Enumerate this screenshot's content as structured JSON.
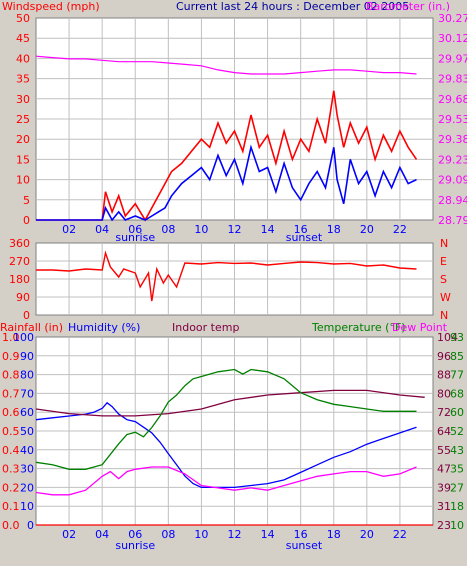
{
  "header": {
    "title": "Current last 24 hours : December 02 2005",
    "left_label": "Windspeed (mph)",
    "right_label": "Barometer (in.)"
  },
  "colors": {
    "background": "#d4d0c8",
    "plot_bg": "#ffffff",
    "grid": "#c0c0c0",
    "wind": "#ff0000",
    "gust": "#ff0000",
    "avg_wind": "#0000ff",
    "barometer": "#ff00ff",
    "humidity": "#0000ff",
    "indoor": "#800040",
    "temperature": "#008000",
    "dewpoint": "#ff00ff",
    "rain": "#ff0000",
    "blue_axis": "#0000ff",
    "title": "#0000a0"
  },
  "chart_data": [
    {
      "type": "line",
      "title": "Current last 24 hours : December 02 2005",
      "ylabel": "Windspeed (mph)",
      "y2label": "Barometer (in.)",
      "xlim": [
        0,
        24
      ],
      "ylim": [
        0,
        50
      ],
      "y2lim": [
        28.79,
        30.27
      ],
      "x_ticks": [
        "02",
        "04",
        "06",
        "08",
        "10",
        "12",
        "14",
        "16",
        "18",
        "20",
        "22"
      ],
      "y_ticks": [
        "0",
        "5",
        "10",
        "15",
        "20",
        "25",
        "30",
        "35",
        "40",
        "45",
        "50"
      ],
      "y2_ticks": [
        "28.79",
        "28.94",
        "29.09",
        "29.23",
        "29.38",
        "29.53",
        "29.68",
        "29.83",
        "29.97",
        "30.12",
        "30.27"
      ],
      "annotations": [
        {
          "text": "sunrise",
          "x": 6.0
        },
        {
          "text": "sunset",
          "x": 16.2
        }
      ],
      "series": [
        {
          "name": "Windspeed",
          "color_key": "wind",
          "x": [
            0,
            4,
            4.2,
            4.6,
            5,
            5.4,
            6,
            6.6,
            7,
            7.4,
            7.8,
            8.2,
            8.8,
            9.4,
            10,
            10.5,
            11,
            11.5,
            12,
            12.5,
            13,
            13.5,
            14,
            14.5,
            15,
            15.5,
            16,
            16.5,
            17,
            17.5,
            18,
            18.2,
            18.6,
            19,
            19.5,
            20,
            20.5,
            21,
            21.5,
            22,
            22.5,
            23
          ],
          "y": [
            0,
            0,
            7,
            2,
            6,
            1,
            4,
            0,
            3,
            6,
            9,
            12,
            14,
            17,
            20,
            18,
            24,
            19,
            22,
            17,
            26,
            18,
            21,
            14,
            22,
            15,
            20,
            17,
            25,
            19,
            32,
            26,
            18,
            24,
            19,
            23,
            15,
            21,
            17,
            22,
            18,
            15
          ]
        },
        {
          "name": "Average",
          "color_key": "avg_wind",
          "x": [
            0,
            4,
            4.2,
            4.6,
            5,
            5.4,
            6,
            6.6,
            7,
            7.4,
            7.8,
            8.2,
            8.8,
            9.4,
            10,
            10.5,
            11,
            11.5,
            12,
            12.5,
            13,
            13.5,
            14,
            14.5,
            15,
            15.5,
            16,
            16.5,
            17,
            17.5,
            18,
            18.2,
            18.6,
            19,
            19.5,
            20,
            20.5,
            21,
            21.5,
            22,
            22.5,
            23
          ],
          "y": [
            0,
            0,
            3,
            0,
            2,
            0,
            1,
            0,
            1,
            2,
            3,
            6,
            9,
            11,
            13,
            10,
            16,
            11,
            15,
            9,
            18,
            12,
            13,
            7,
            14,
            8,
            5,
            9,
            12,
            8,
            18,
            10,
            4,
            15,
            9,
            12,
            6,
            12,
            8,
            13,
            9,
            10
          ]
        },
        {
          "name": "Barometer",
          "color_key": "barometer",
          "axis": "y2",
          "x": [
            0,
            1,
            2,
            3,
            4,
            5,
            6,
            7,
            8,
            9,
            10,
            11,
            12,
            13,
            14,
            15,
            16,
            17,
            18,
            19,
            20,
            21,
            22,
            23
          ],
          "y": [
            29.99,
            29.98,
            29.97,
            29.97,
            29.96,
            29.95,
            29.95,
            29.95,
            29.94,
            29.93,
            29.92,
            29.89,
            29.87,
            29.86,
            29.86,
            29.86,
            29.87,
            29.88,
            29.89,
            29.89,
            29.88,
            29.87,
            29.87,
            29.86
          ]
        }
      ]
    },
    {
      "type": "line",
      "ylabel": "Wind direction",
      "xlim": [
        0,
        24
      ],
      "ylim": [
        0,
        360
      ],
      "y_ticks": [
        "0",
        "90",
        "180",
        "270",
        "360"
      ],
      "y2_ticks": [
        "N",
        "W",
        "S",
        "E",
        "N"
      ],
      "series": [
        {
          "name": "Direction",
          "color_key": "wind",
          "x": [
            0,
            1,
            2,
            3,
            4,
            4.2,
            4.5,
            5,
            5.3,
            6,
            6.3,
            6.8,
            7,
            7.3,
            7.7,
            8,
            8.5,
            9,
            10,
            11,
            12,
            13,
            14,
            15,
            16,
            17,
            18,
            19,
            20,
            21,
            22,
            23
          ],
          "y": [
            225,
            225,
            220,
            230,
            225,
            310,
            240,
            190,
            230,
            210,
            140,
            210,
            70,
            230,
            160,
            200,
            140,
            260,
            255,
            262,
            258,
            260,
            250,
            258,
            265,
            262,
            255,
            258,
            245,
            250,
            235,
            230
          ]
        }
      ]
    },
    {
      "type": "line",
      "labels": {
        "rain": "Rainfall (in)",
        "humidity": "Humidity (%)",
        "indoor": "Indoor temp",
        "temperature": "Temperature (°F)",
        "dewpoint": "Dew Point"
      },
      "xlim": [
        0,
        24
      ],
      "x_ticks": [
        "02",
        "04",
        "06",
        "08",
        "10",
        "12",
        "14",
        "16",
        "18",
        "20",
        "22"
      ],
      "rain_ticks": [
        "0.0",
        "0.1",
        "0.2",
        "0.3",
        "0.4",
        "0.5",
        "0.6",
        "0.7",
        "0.8",
        "0.9",
        "1.0"
      ],
      "humidity_ticks": [
        "0",
        "10",
        "20",
        "30",
        "40",
        "50",
        "60",
        "70",
        "80",
        "90",
        "100"
      ],
      "temp_ticks_a": [
        "23",
        "31",
        "39",
        "47",
        "55",
        "64",
        "72",
        "80",
        "88",
        "96",
        "104"
      ],
      "temp_ticks_b": [
        "10",
        "18",
        "27",
        "35",
        "43",
        "52",
        "60",
        "68",
        "77",
        "85",
        "93"
      ],
      "temp_range": [
        23,
        104
      ],
      "annotations": [
        {
          "text": "sunrise",
          "x": 6.0
        },
        {
          "text": "sunset",
          "x": 16.2
        }
      ],
      "series": [
        {
          "name": "Humidity",
          "color_key": "humidity",
          "axis": "humidity",
          "x": [
            0,
            1,
            2,
            3,
            3.5,
            4,
            4.3,
            4.6,
            5,
            5.5,
            6,
            6.5,
            7,
            7.5,
            8,
            8.5,
            9,
            9.5,
            10,
            11,
            12,
            13,
            14,
            15,
            16,
            17,
            18,
            19,
            20,
            21,
            22,
            23
          ],
          "y": [
            56,
            57,
            58,
            59,
            60,
            62,
            65,
            63,
            59,
            56,
            55,
            52,
            49,
            44,
            38,
            32,
            26,
            22,
            20,
            20,
            20,
            21,
            22,
            24,
            28,
            32,
            36,
            39,
            43,
            46,
            49,
            52
          ]
        },
        {
          "name": "Indoor temp",
          "color_key": "indoor",
          "axis": "temp",
          "x": [
            0,
            2,
            4,
            6,
            8,
            10,
            12,
            14,
            16,
            18,
            20,
            22,
            23.5
          ],
          "y": [
            73,
            71,
            70,
            70,
            71,
            73,
            77,
            79,
            80,
            81,
            81,
            79,
            78
          ]
        },
        {
          "name": "Temperature",
          "color_key": "temperature",
          "axis": "temp",
          "x": [
            0,
            1,
            2,
            3,
            4,
            5,
            5.5,
            6,
            6.5,
            7,
            7.5,
            8,
            8.5,
            9,
            9.5,
            10,
            11,
            12,
            12.5,
            13,
            14,
            15,
            16,
            17,
            18,
            19,
            20,
            21,
            22,
            23
          ],
          "y": [
            50,
            49,
            47,
            47,
            49,
            58,
            62,
            63,
            61,
            65,
            70,
            76,
            79,
            83,
            86,
            87,
            89,
            90,
            88,
            90,
            89,
            86,
            80,
            77,
            75,
            74,
            73,
            72,
            72,
            72
          ]
        },
        {
          "name": "Dew Point",
          "color_key": "dewpoint",
          "axis": "temp",
          "x": [
            0,
            1,
            2,
            3,
            4,
            4.5,
            5,
            5.5,
            6,
            7,
            8,
            9,
            10,
            11,
            12,
            13,
            14,
            15,
            16,
            17,
            18,
            19,
            20,
            21,
            22,
            23
          ],
          "y": [
            37,
            36,
            36,
            38,
            44,
            46,
            43,
            46,
            47,
            48,
            48,
            45,
            40,
            39,
            38,
            39,
            38,
            40,
            42,
            44,
            45,
            46,
            46,
            44,
            45,
            48
          ]
        },
        {
          "name": "Rainfall",
          "color_key": "rain",
          "axis": "rain",
          "x": [
            0,
            24
          ],
          "y": [
            0,
            0
          ]
        }
      ]
    }
  ]
}
